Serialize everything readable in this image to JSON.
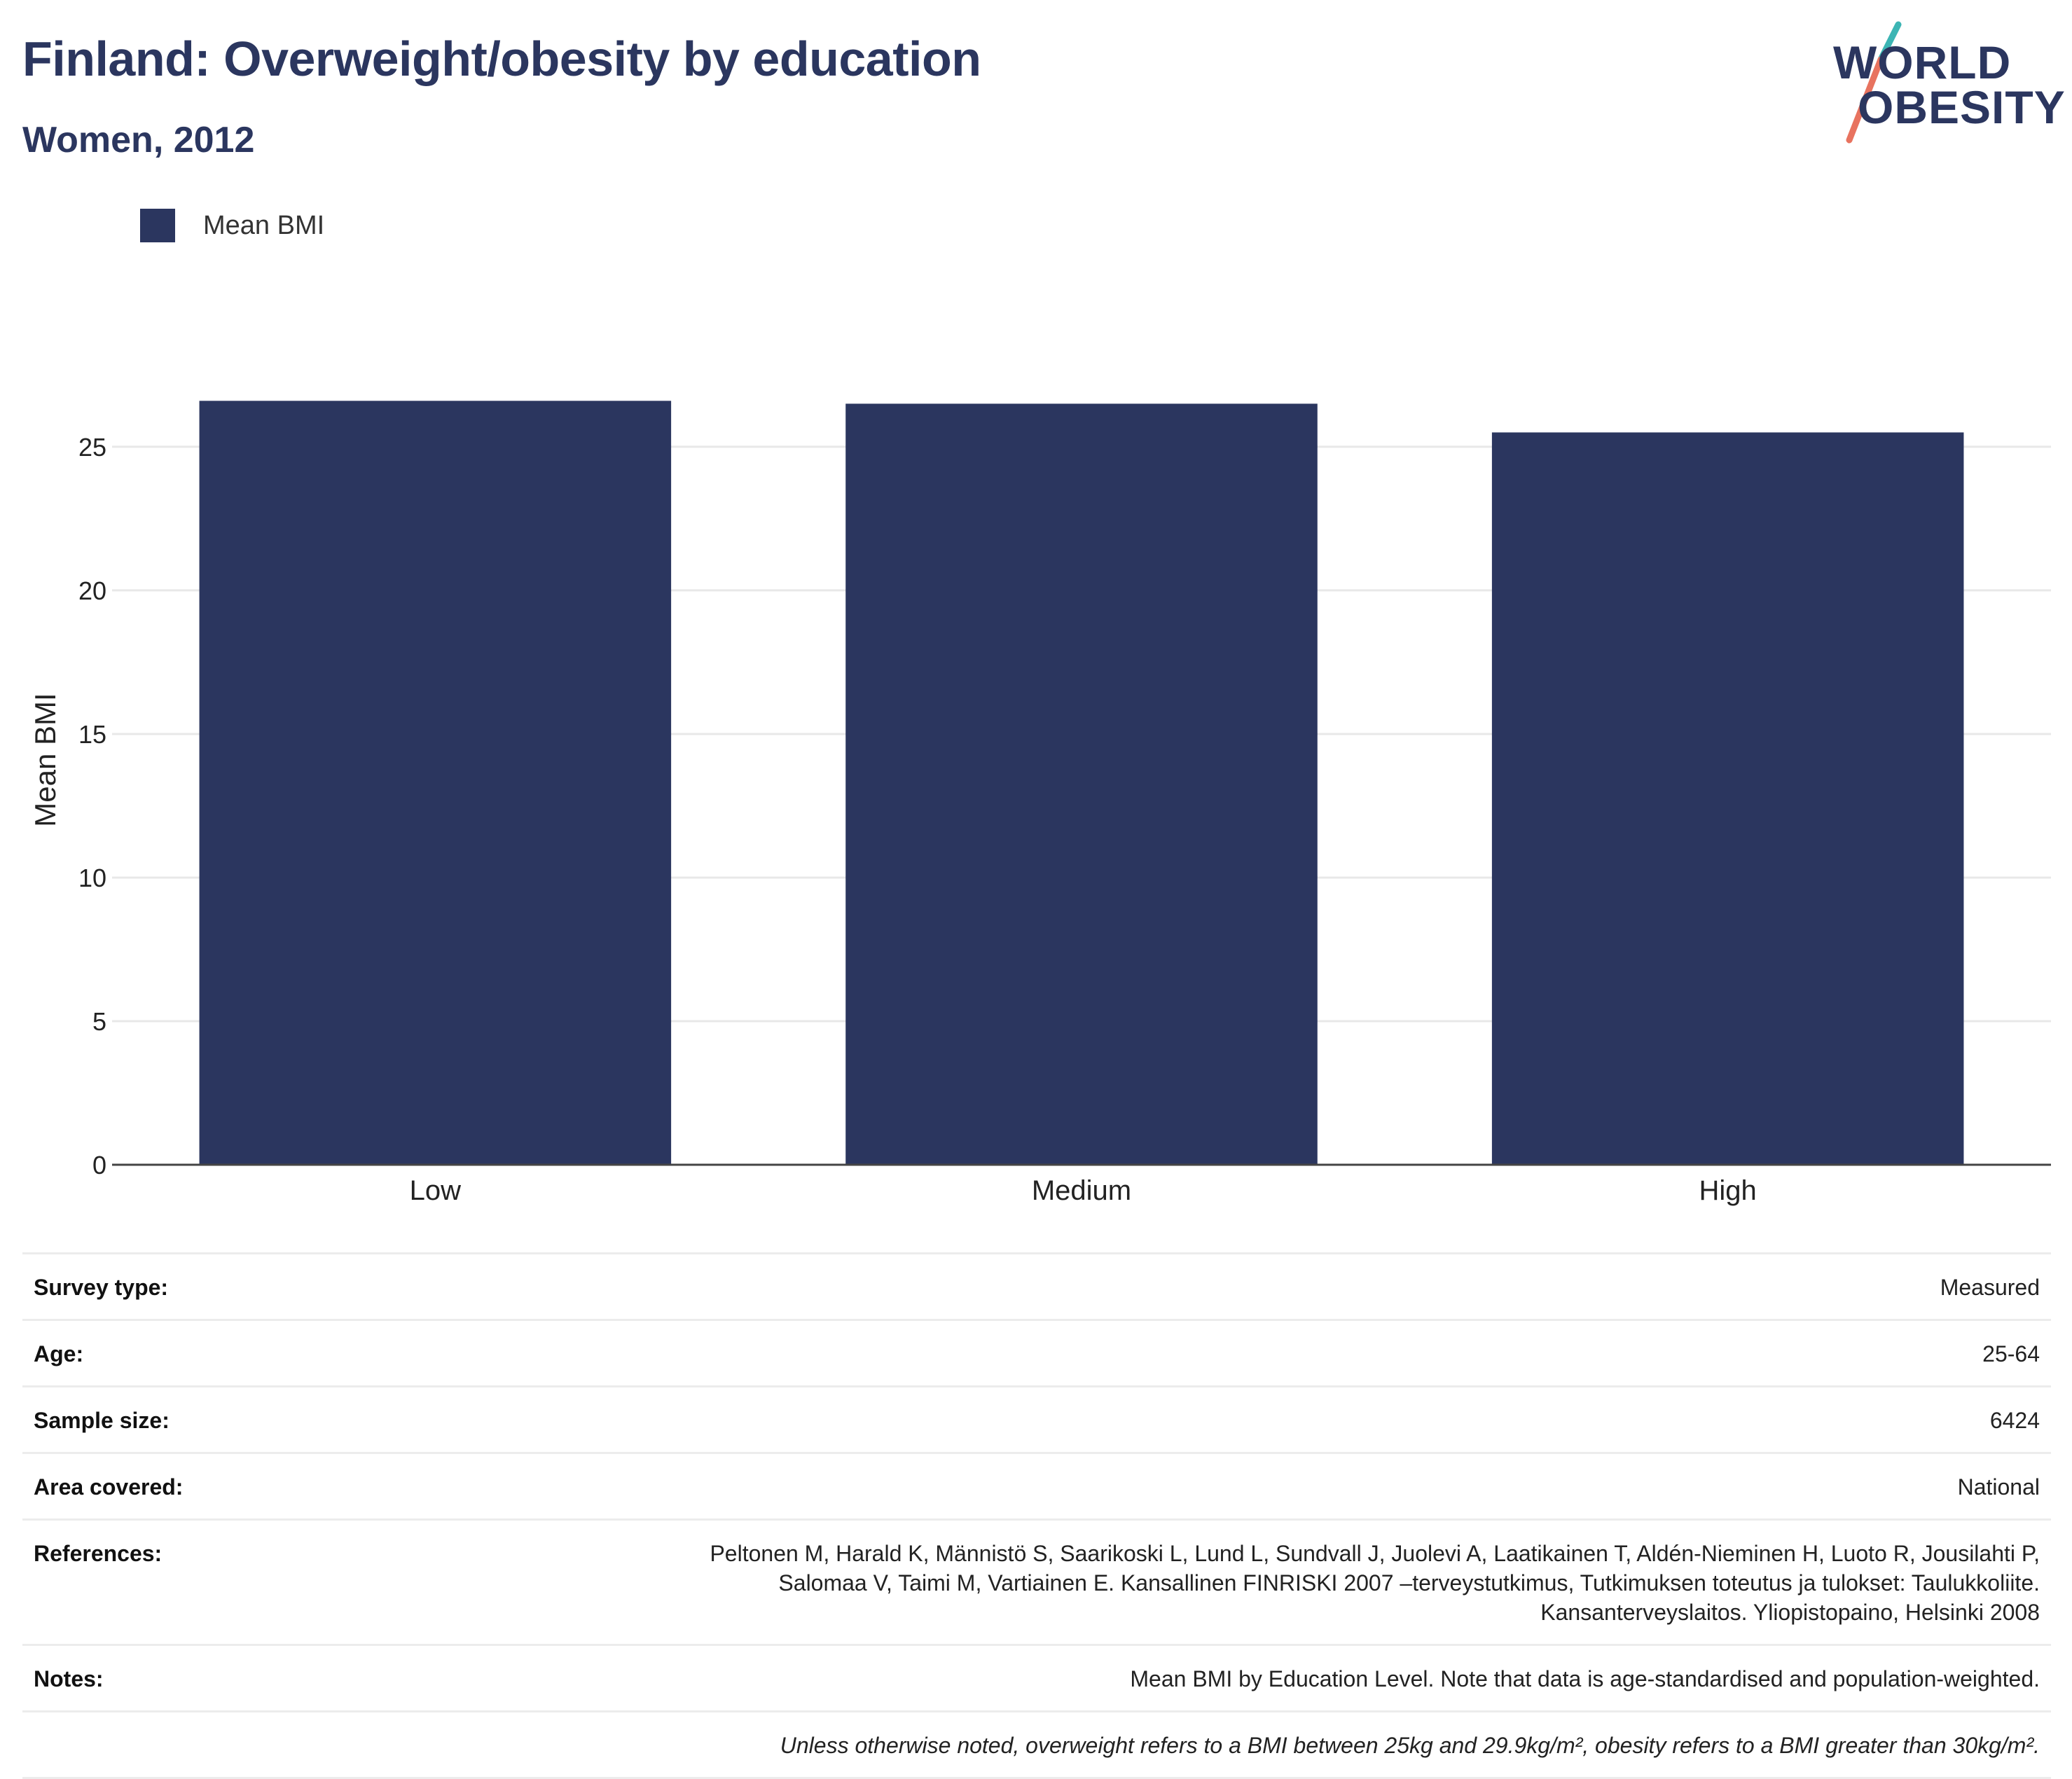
{
  "header": {
    "title": "Finland: Overweight/obesity by education",
    "subtitle": "Women, 2012"
  },
  "logo": {
    "line1": "WORLD",
    "line2": "OBESITY"
  },
  "colors": {
    "bar": "#2b365f",
    "title": "#2b365f",
    "grid": "#e8e8e8",
    "logo_teal": "#3cb5b4",
    "logo_coral": "#e8735f"
  },
  "chart_data": {
    "type": "bar",
    "categories": [
      "Low",
      "Medium",
      "High"
    ],
    "series": [
      {
        "name": "Mean BMI",
        "values": [
          26.6,
          26.5,
          25.5
        ]
      }
    ],
    "ylabel": "Mean BMI",
    "xlabel": "",
    "ylim": [
      0,
      28
    ],
    "yticks": [
      0,
      5,
      10,
      15,
      20,
      25
    ],
    "grid": true,
    "legend": "top-left"
  },
  "meta": {
    "survey_type": {
      "label": "Survey type:",
      "value": "Measured"
    },
    "age": {
      "label": "Age:",
      "value": "25-64"
    },
    "sample_size": {
      "label": "Sample size:",
      "value": "6424"
    },
    "area": {
      "label": "Area covered:",
      "value": "National"
    },
    "references": {
      "label": "References:",
      "value": "Peltonen M, Harald K, Männistö S, Saarikoski L, Lund L, Sundvall J, Juolevi A, Laatikainen T, Aldén-Nieminen H, Luoto R, Jousilahti P,\nSalomaa V, Taimi M, Vartiainen E. Kansallinen FINRISKI 2007 –terveystutkimus, Tutkimuksen toteutus ja tulokset: Taulukkoliite.\nKansanterveyslaitos. Yliopistopaino, Helsinki 2008"
    },
    "notes": {
      "label": "Notes:",
      "value": "Mean BMI by Education Level. Note that data is age-standardised and population-weighted."
    },
    "definition": "Unless otherwise noted, overweight refers to a BMI between 25kg and 29.9kg/m², obesity refers to a BMI greater than 30kg/m²."
  }
}
